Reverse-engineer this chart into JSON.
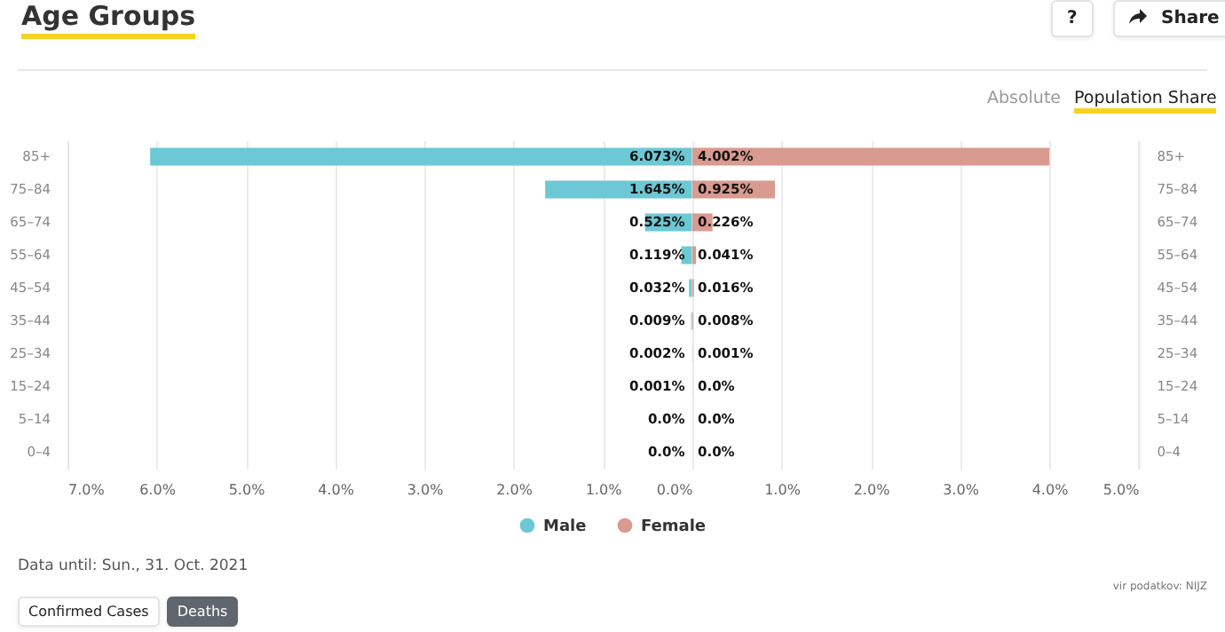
{
  "chart_data": [
    {
      "type": "bar",
      "orientation": "horizontal",
      "title": "Age Groups",
      "categories": [
        "85+",
        "75–84",
        "65–74",
        "55–64",
        "45–54",
        "35–44",
        "25–34",
        "15–24",
        "5–14",
        "0–4"
      ],
      "series": [
        {
          "name": "Male",
          "color": "#6cc8d4",
          "values": [
            6.073,
            1.645,
            0.525,
            0.119,
            0.032,
            0.009,
            0.002,
            0.001,
            0.0,
            0.0
          ],
          "value_labels": [
            "6.073%",
            "1.645%",
            "0.525%",
            "0.119%",
            "0.032%",
            "0.009%",
            "0.002%",
            "0.001%",
            "0.0%",
            "0.0%"
          ]
        }
      ],
      "xlim": [
        7,
        0
      ],
      "xticks": [
        {
          "value": 7,
          "label": "7.0%"
        },
        {
          "value": 6,
          "label": "6.0%"
        },
        {
          "value": 5,
          "label": "5.0%"
        },
        {
          "value": 4,
          "label": "4.0%"
        },
        {
          "value": 3,
          "label": "3.0%"
        },
        {
          "value": 2,
          "label": "2.0%"
        },
        {
          "value": 1,
          "label": "1.0%"
        },
        {
          "value": 0,
          "label": "0.0%"
        }
      ],
      "grid": "x",
      "legend": "bottom",
      "annotations": [
        "?",
        "Share",
        "Absolute",
        "Population Share",
        "Data until: Sun., 31. Oct. 2021",
        "vir podatkov: NIJZ",
        "Confirmed Cases",
        "Deaths"
      ]
    },
    {
      "type": "bar",
      "orientation": "horizontal",
      "categories": [
        "85+",
        "75–84",
        "65–74",
        "55–64",
        "45–54",
        "35–44",
        "25–34",
        "15–24",
        "5–14",
        "0–4"
      ],
      "series": [
        {
          "name": "Female",
          "color": "#d99a90",
          "values": [
            4.002,
            0.925,
            0.226,
            0.041,
            0.016,
            0.008,
            0.001,
            0.0,
            0.0,
            0.0
          ],
          "value_labels": [
            "4.002%",
            "0.925%",
            "0.226%",
            "0.041%",
            "0.016%",
            "0.008%",
            "0.001%",
            "0.0%",
            "0.0%",
            "0.0%"
          ]
        }
      ],
      "xlim": [
        0,
        5
      ],
      "xticks": [
        {
          "value": 1,
          "label": "1.0%"
        },
        {
          "value": 2,
          "label": "2.0%"
        },
        {
          "value": 3,
          "label": "3.0%"
        },
        {
          "value": 4,
          "label": "4.0%"
        },
        {
          "value": 5,
          "label": "5.0%"
        }
      ],
      "grid": "x",
      "legend": "bottom"
    }
  ]
}
